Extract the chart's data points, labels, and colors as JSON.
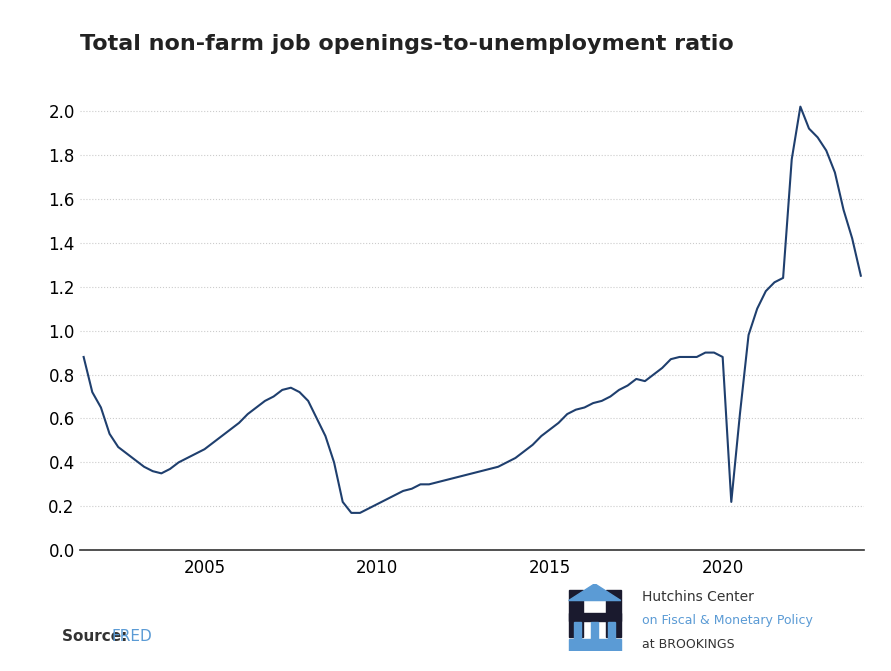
{
  "title": "Total non-farm job openings-to-unemployment ratio",
  "line_color": "#1f3f6e",
  "background_color": "#ffffff",
  "grid_color": "#cccccc",
  "title_fontsize": 16,
  "source_text": "Source: ",
  "source_link": "FRED",
  "source_color": "#5b9bd5",
  "ylim": [
    0.0,
    2.2
  ],
  "yticks": [
    0.0,
    0.2,
    0.4,
    0.6,
    0.8,
    1.0,
    1.2,
    1.4,
    1.6,
    1.8,
    2.0
  ],
  "xticks": [
    2005,
    2010,
    2015,
    2020
  ],
  "dates": [
    2001.5,
    2001.75,
    2002.0,
    2002.25,
    2002.5,
    2002.75,
    2003.0,
    2003.25,
    2003.5,
    2003.75,
    2004.0,
    2004.25,
    2004.5,
    2004.75,
    2005.0,
    2005.25,
    2005.5,
    2005.75,
    2006.0,
    2006.25,
    2006.5,
    2006.75,
    2007.0,
    2007.25,
    2007.5,
    2007.75,
    2008.0,
    2008.25,
    2008.5,
    2008.75,
    2009.0,
    2009.25,
    2009.5,
    2009.75,
    2010.0,
    2010.25,
    2010.5,
    2010.75,
    2011.0,
    2011.25,
    2011.5,
    2011.75,
    2012.0,
    2012.25,
    2012.5,
    2012.75,
    2013.0,
    2013.25,
    2013.5,
    2013.75,
    2014.0,
    2014.25,
    2014.5,
    2014.75,
    2015.0,
    2015.25,
    2015.5,
    2015.75,
    2016.0,
    2016.25,
    2016.5,
    2016.75,
    2017.0,
    2017.25,
    2017.5,
    2017.75,
    2018.0,
    2018.25,
    2018.5,
    2018.75,
    2019.0,
    2019.25,
    2019.5,
    2019.75,
    2020.0,
    2020.25,
    2020.5,
    2020.75,
    2021.0,
    2021.25,
    2021.5,
    2021.75,
    2022.0,
    2022.25,
    2022.5,
    2022.75,
    2023.0,
    2023.25,
    2023.5,
    2023.75,
    2024.0
  ],
  "values": [
    0.88,
    0.72,
    0.65,
    0.53,
    0.47,
    0.44,
    0.41,
    0.38,
    0.36,
    0.35,
    0.37,
    0.4,
    0.42,
    0.44,
    0.46,
    0.49,
    0.52,
    0.55,
    0.58,
    0.62,
    0.65,
    0.68,
    0.7,
    0.73,
    0.74,
    0.72,
    0.68,
    0.6,
    0.52,
    0.4,
    0.22,
    0.17,
    0.17,
    0.19,
    0.21,
    0.23,
    0.25,
    0.27,
    0.28,
    0.3,
    0.3,
    0.31,
    0.32,
    0.33,
    0.34,
    0.35,
    0.36,
    0.37,
    0.38,
    0.4,
    0.42,
    0.45,
    0.48,
    0.52,
    0.55,
    0.58,
    0.62,
    0.64,
    0.65,
    0.67,
    0.68,
    0.7,
    0.73,
    0.75,
    0.78,
    0.77,
    0.8,
    0.83,
    0.87,
    0.88,
    0.88,
    0.88,
    0.9,
    0.9,
    0.88,
    0.22,
    0.62,
    0.98,
    1.1,
    1.18,
    1.22,
    1.24,
    1.78,
    2.02,
    1.92,
    1.88,
    1.82,
    1.72,
    1.55,
    1.42,
    1.25
  ]
}
